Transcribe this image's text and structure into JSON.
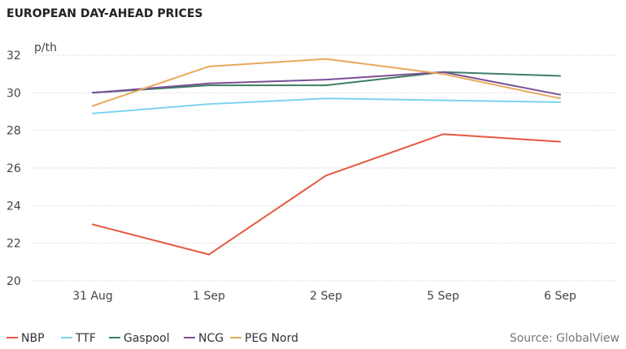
{
  "chart_data": {
    "type": "line",
    "title": "EUROPEAN DAY-AHEAD PRICES",
    "unit": "p/th",
    "categories": [
      "31 Aug",
      "1 Sep",
      "2 Sep",
      "5 Sep",
      "6 Sep"
    ],
    "ylim": [
      20,
      32
    ],
    "yticks": [
      "20",
      "22",
      "24",
      "26",
      "28",
      "30",
      "32"
    ],
    "grid": true,
    "legend_position": "bottom-left",
    "source": "Source: GlobalView",
    "series": [
      {
        "name": "NBP",
        "color": "#e8573f",
        "values": [
          23.0,
          21.4,
          25.6,
          27.8,
          27.4
        ]
      },
      {
        "name": "TTF",
        "color": "#7dd3f0",
        "values": [
          28.9,
          29.4,
          29.7,
          29.6,
          29.5
        ]
      },
      {
        "name": "Gaspool",
        "color": "#3d7d64",
        "values": [
          30.0,
          30.4,
          30.4,
          31.1,
          30.9
        ]
      },
      {
        "name": "NCG",
        "color": "#7a4f96",
        "values": [
          30.0,
          30.5,
          30.7,
          31.1,
          29.9
        ]
      },
      {
        "name": "PEG Nord",
        "color": "#e8a95a",
        "values": [
          29.3,
          31.4,
          31.8,
          31.0,
          29.7
        ]
      }
    ]
  }
}
